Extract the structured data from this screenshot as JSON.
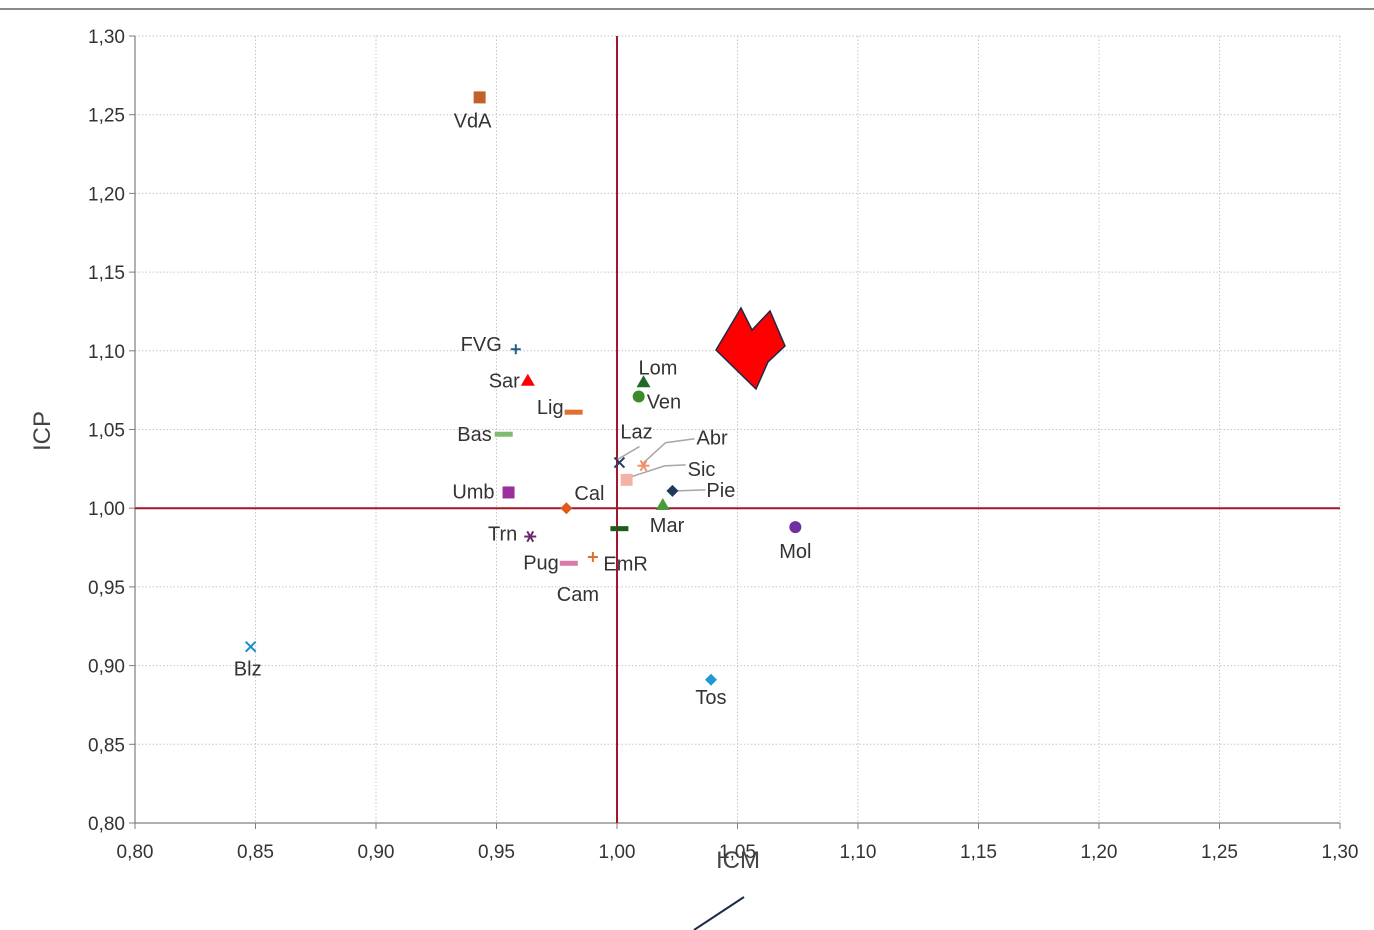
{
  "chart_data": {
    "type": "scatter",
    "title": "",
    "xlabel": "ICM",
    "ylabel": "ICP",
    "xlim": [
      0.8,
      1.3
    ],
    "ylim": [
      0.8,
      1.3
    ],
    "x_ticks": [
      "0,80",
      "0,85",
      "0,90",
      "0,95",
      "1,00",
      "1,05",
      "1,10",
      "1,15",
      "1,20",
      "1,25",
      "1,30"
    ],
    "y_ticks": [
      "0,80",
      "0,85",
      "0,90",
      "0,95",
      "1,00",
      "1,05",
      "1,10",
      "1,15",
      "1,20",
      "1,25",
      "1,30"
    ],
    "grid": true,
    "legend": "none",
    "reference_lines": {
      "x": 1.0,
      "y": 1.0,
      "color": "#a0182a"
    },
    "arrow_color": "#ff0000",
    "points": [
      {
        "label": "VdA",
        "x": 0.943,
        "y": 1.261,
        "marker": "square",
        "color": "#c0622a"
      },
      {
        "label": "FVG",
        "x": 0.958,
        "y": 1.101,
        "marker": "plus",
        "color": "#1f5f8a"
      },
      {
        "label": "Sar",
        "x": 0.963,
        "y": 1.081,
        "marker": "triangle",
        "color": "#ff0000"
      },
      {
        "label": "Lig",
        "x": 0.982,
        "y": 1.061,
        "marker": "dash",
        "color": "#e07030"
      },
      {
        "label": "Bas",
        "x": 0.953,
        "y": 1.047,
        "marker": "dash",
        "color": "#7dbb6f"
      },
      {
        "label": "Umb",
        "x": 0.955,
        "y": 1.01,
        "marker": "square",
        "color": "#9b2f9b"
      },
      {
        "label": "Cal",
        "x": 0.979,
        "y": 1.0,
        "marker": "diamond",
        "color": "#e05a1e"
      },
      {
        "label": "Trn",
        "x": 0.964,
        "y": 0.982,
        "marker": "asterisk",
        "color": "#6b2a6b"
      },
      {
        "label": "Pug",
        "x": 0.98,
        "y": 0.965,
        "marker": "dash",
        "color": "#d87aaa"
      },
      {
        "label": "Cam",
        "x": 0.99,
        "y": 0.969,
        "marker": "plus",
        "color": "#e07030"
      },
      {
        "label": "EmR",
        "x": 1.001,
        "y": 0.987,
        "marker": "dash",
        "color": "#1e5a1e"
      },
      {
        "label": "Laz",
        "x": 1.001,
        "y": 1.029,
        "marker": "x",
        "color": "#2a3a6a"
      },
      {
        "label": "Abr",
        "x": 1.011,
        "y": 1.027,
        "marker": "asterisk",
        "color": "#f0906a"
      },
      {
        "label": "Sic",
        "x": 1.004,
        "y": 1.018,
        "marker": "square",
        "color": "#f4b2a6"
      },
      {
        "label": "Lom",
        "x": 1.011,
        "y": 1.08,
        "marker": "triangle",
        "color": "#1e6a2a"
      },
      {
        "label": "Ven",
        "x": 1.009,
        "y": 1.071,
        "marker": "circle",
        "color": "#3c8a2a"
      },
      {
        "label": "Pie",
        "x": 1.023,
        "y": 1.011,
        "marker": "diamond",
        "color": "#1e3a5a"
      },
      {
        "label": "Mar",
        "x": 1.019,
        "y": 1.002,
        "marker": "triangle",
        "color": "#4a9a3a"
      },
      {
        "label": "Mol",
        "x": 1.074,
        "y": 0.988,
        "marker": "circle",
        "color": "#7030a0"
      },
      {
        "label": "Tos",
        "x": 1.039,
        "y": 0.891,
        "marker": "diamond",
        "color": "#1e9ad6"
      },
      {
        "label": "Blz",
        "x": 0.848,
        "y": 0.912,
        "marker": "x",
        "color": "#1e8ac6"
      }
    ]
  }
}
